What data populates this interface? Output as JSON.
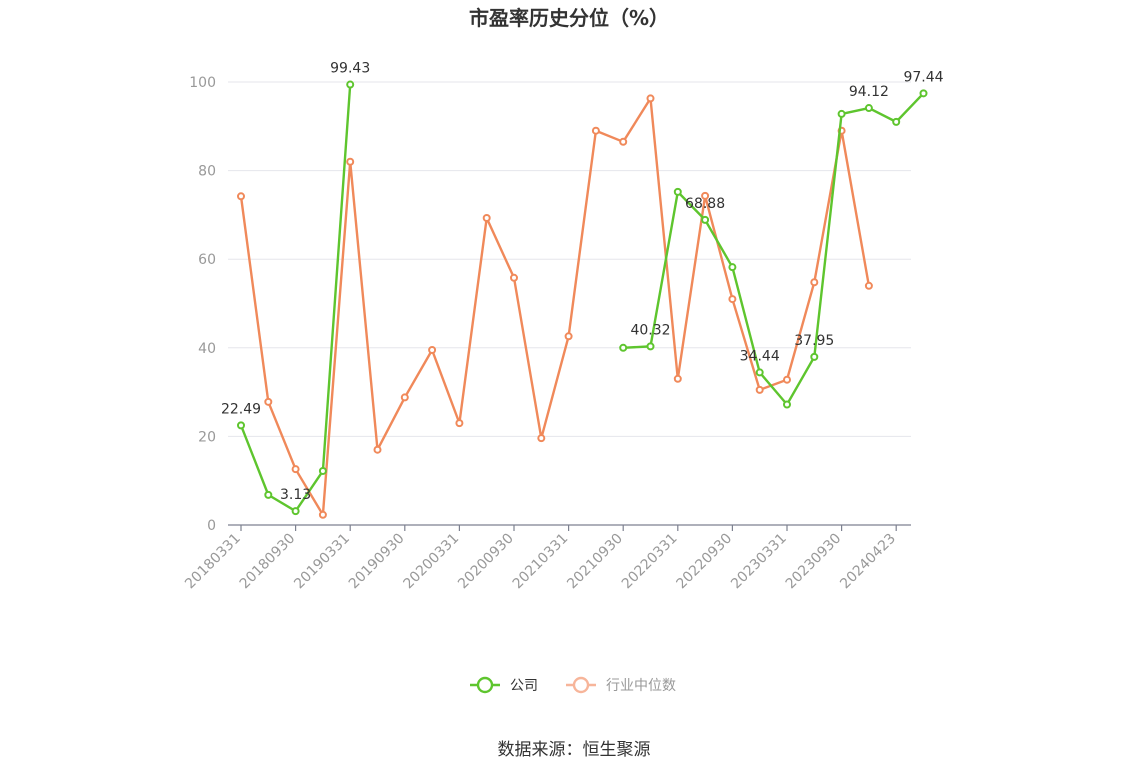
{
  "chart_data": {
    "type": "line",
    "title": "市盈率历史分位（%）",
    "ylim": [
      0,
      100
    ],
    "yticks": [
      0,
      20,
      40,
      60,
      80,
      100
    ],
    "xticks": [
      "20180331",
      "20180930",
      "20190331",
      "20190930",
      "20200331",
      "20200930",
      "20210331",
      "20210930",
      "20220331",
      "20220930",
      "20230331",
      "20230930",
      "20240423"
    ],
    "grid": true,
    "legend_position": "bottom",
    "series": [
      {
        "name": "公司",
        "color": "#5ec52e",
        "values": [
          22.49,
          6.8,
          3.13,
          12.2,
          99.43,
          null,
          null,
          null,
          null,
          null,
          null,
          null,
          null,
          null,
          40.0,
          40.32,
          75.2,
          68.88,
          58.2,
          34.44,
          27.2,
          37.95,
          92.8,
          94.12,
          91.0,
          97.44
        ],
        "labels": {
          "0": "22.49",
          "2": "3.13",
          "4": "99.43",
          "15": "40.32",
          "17": "68.88",
          "19": "34.44",
          "21": "37.95",
          "23": "94.12",
          "25": "97.44"
        }
      },
      {
        "name": "行业中位数",
        "color": "#f0895a",
        "values": [
          74.2,
          27.8,
          12.6,
          2.3,
          82.0,
          17.0,
          28.8,
          39.5,
          23.0,
          69.3,
          55.8,
          19.6,
          42.6,
          89.0,
          86.5,
          96.3,
          33.0,
          74.3,
          51.0,
          30.5,
          32.8,
          54.8,
          89.0,
          54.0,
          null,
          null
        ]
      }
    ]
  },
  "source_text": "数据来源：恒生聚源"
}
